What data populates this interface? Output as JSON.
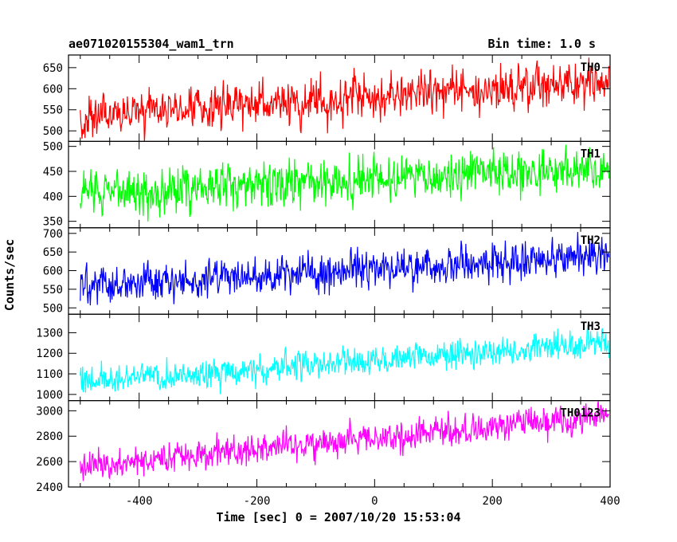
{
  "header": {
    "title": "ae071020155304_wam1_trn",
    "bin_time": "Bin time: 1.0 s"
  },
  "chart_data": {
    "type": "line",
    "title": "ae071020155304_wam1_trn",
    "xlabel": "Time [sec] 0 = 2007/10/20 15:53:04",
    "ylabel": "Counts/sec",
    "xlim": [
      -520,
      400
    ],
    "x_ticks": [
      -400,
      -200,
      0,
      200,
      400
    ],
    "grid": false,
    "x_start": -500,
    "x_end": 398,
    "bin": 1.0,
    "panels": [
      {
        "name": "TH0",
        "color": "#ff0000",
        "ylim": [
          475,
          680
        ],
        "y_ticks": [
          500,
          550,
          600,
          650
        ],
        "trend": [
          -500,
          535,
          398,
          615
        ],
        "noise": 30
      },
      {
        "name": "TH1",
        "color": "#00ff00",
        "ylim": [
          337,
          510
        ],
        "y_ticks": [
          350,
          400,
          450,
          500
        ],
        "trend": [
          -500,
          405,
          398,
          455
        ],
        "noise": 25
      },
      {
        "name": "TH2",
        "color": "#0000ff",
        "ylim": [
          483,
          715
        ],
        "y_ticks": [
          500,
          550,
          600,
          650,
          700
        ],
        "trend": [
          -500,
          560,
          398,
          640
        ],
        "noise": 28
      },
      {
        "name": "TH3",
        "color": "#00ffff",
        "ylim": [
          970,
          1390
        ],
        "y_ticks": [
          1000,
          1100,
          1200,
          1300
        ],
        "trend": [
          -500,
          1060,
          398,
          1250
        ],
        "noise": 40
      },
      {
        "name": "TH0123",
        "color": "#ff00ff",
        "ylim": [
          2400,
          3080
        ],
        "y_ticks": [
          2400,
          2600,
          2800,
          3000
        ],
        "trend": [
          -500,
          2560,
          398,
          2960
        ],
        "noise": 65
      }
    ]
  }
}
